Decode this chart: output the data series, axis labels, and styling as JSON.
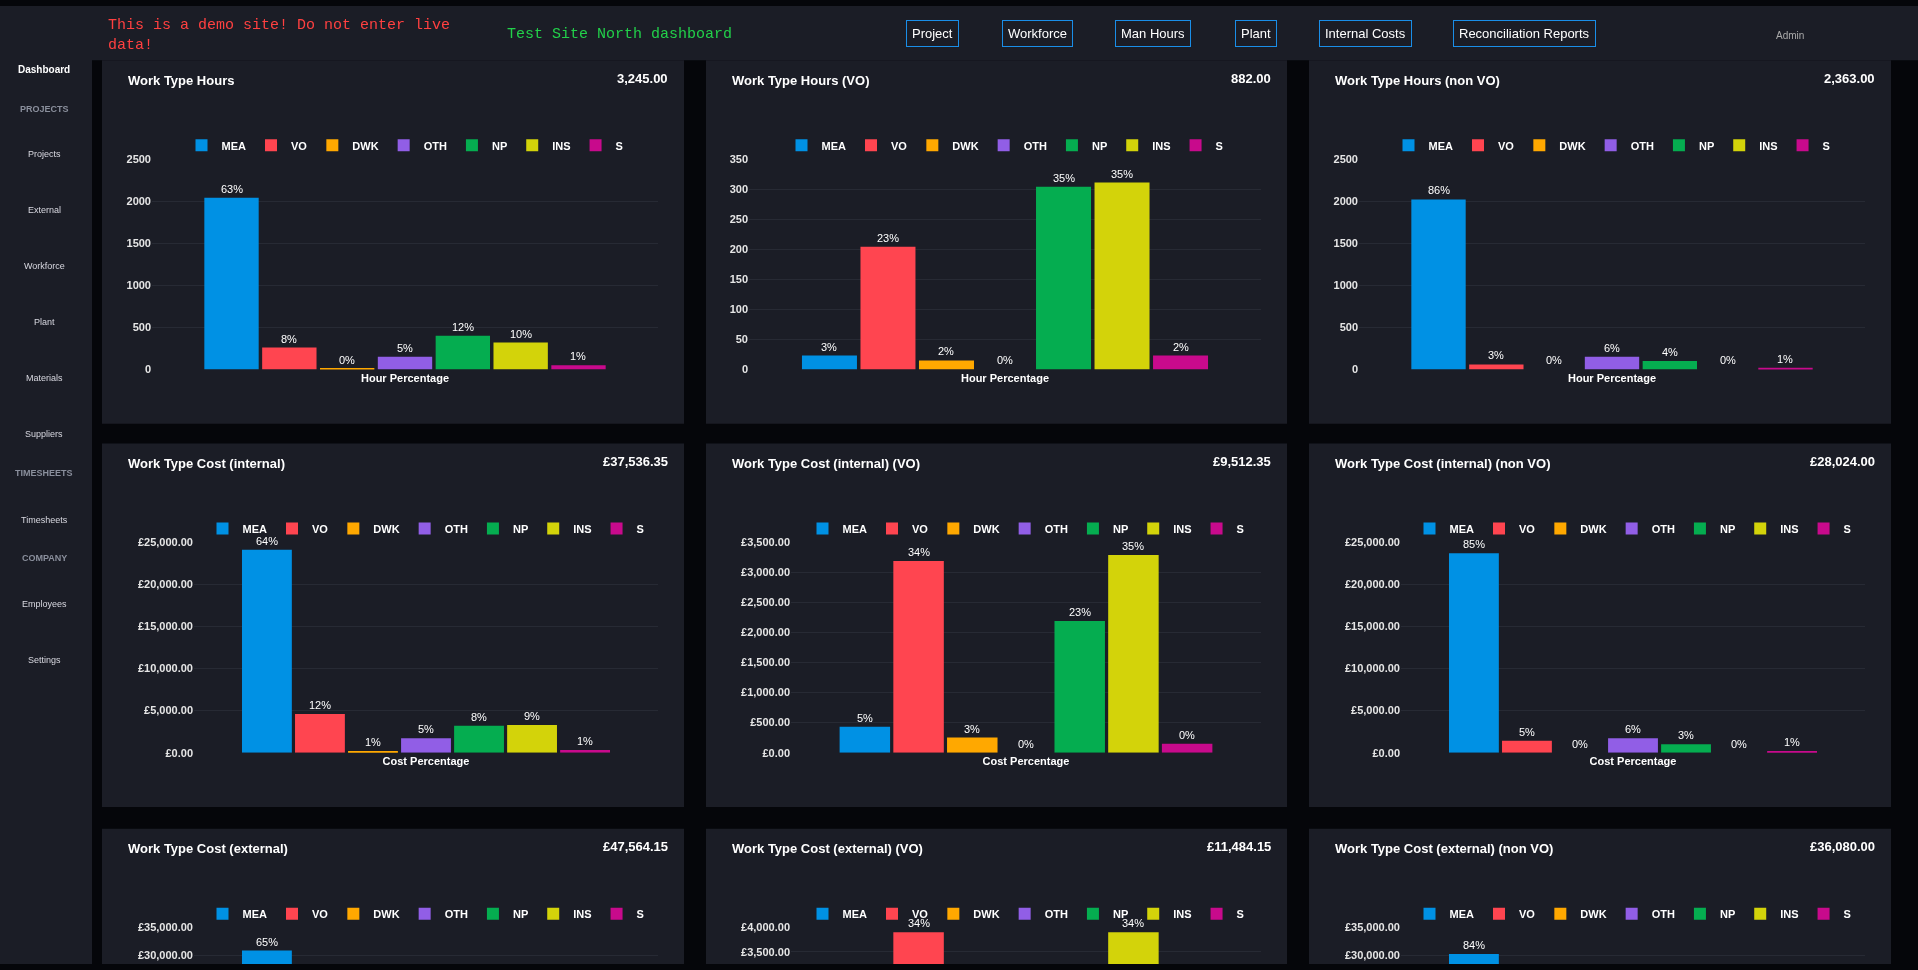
{
  "chart_data": [
    {
      "type": "other",
      "annotations": [
        "This is a demo site! Do not enter live data!",
        "Test Site North dashboard",
        "Project",
        "Workforce",
        "Man Hours",
        "Plant",
        "Internal Costs",
        "Reconciliation Reports",
        "Admin",
        "Dashboard",
        "PROJECTS",
        "Projects",
        "External",
        "Workforce",
        "Plant",
        "Materials",
        "Suppliers",
        "TIMESHEETS",
        "Timesheets",
        "COMPANY",
        "Employees",
        "Settings"
      ]
    },
    {
      "type": "bar",
      "title": "Work Type Hours",
      "subtitle": "3,245.00",
      "xlabel": "Hour Percentage",
      "categories": [
        null
      ],
      "ylim": [
        0,
        2500
      ],
      "yticks": [
        0,
        500,
        1000,
        1500,
        2000,
        2500
      ],
      "grid": "y",
      "legend": "top",
      "annotations": [
        {
          "text": "63%",
          "y": 2040
        },
        {
          "text": "8%",
          "y": 260
        },
        {
          "text": "0%",
          "y": 10
        },
        {
          "text": "5%",
          "y": 150
        },
        {
          "text": "12%",
          "y": 400
        },
        {
          "text": "10%",
          "y": 320
        },
        {
          "text": "1%",
          "y": 50
        }
      ],
      "series": [
        {
          "name": "MEA",
          "color": "#0091e4",
          "values": [
            2040
          ]
        },
        {
          "name": "VO",
          "color": "#ff4550",
          "values": [
            260
          ]
        },
        {
          "name": "DWK",
          "color": "#ffa800",
          "values": [
            10
          ]
        },
        {
          "name": "OTH",
          "color": "#915ee6",
          "values": [
            150
          ]
        },
        {
          "name": "NP",
          "color": "#05ad50",
          "values": [
            400
          ]
        },
        {
          "name": "INS",
          "color": "#d3d30a",
          "values": [
            320
          ]
        },
        {
          "name": "S",
          "color": "#c80a8c",
          "values": [
            50
          ]
        }
      ]
    },
    {
      "type": "bar",
      "title": "Work Type Hours (VO)",
      "subtitle": "882.00",
      "xlabel": "Hour Percentage",
      "categories": [
        null
      ],
      "ylim": [
        0,
        350
      ],
      "yticks": [
        0,
        50,
        100,
        150,
        200,
        250,
        300,
        350
      ],
      "grid": "y",
      "legend": "top",
      "annotations": [
        {
          "text": "3%",
          "y": 23
        },
        {
          "text": "23%",
          "y": 204
        },
        {
          "text": "2%",
          "y": 15
        },
        {
          "text": "0%",
          "y": 0
        },
        {
          "text": "35%",
          "y": 304
        },
        {
          "text": "35%",
          "y": 311
        },
        {
          "text": "2%",
          "y": 23
        }
      ],
      "series": [
        {
          "name": "MEA",
          "color": "#0091e4",
          "values": [
            23
          ]
        },
        {
          "name": "VO",
          "color": "#ff4550",
          "values": [
            204
          ]
        },
        {
          "name": "DWK",
          "color": "#ffa800",
          "values": [
            15
          ]
        },
        {
          "name": "OTH",
          "color": "#915ee6",
          "values": [
            0
          ]
        },
        {
          "name": "NP",
          "color": "#05ad50",
          "values": [
            304
          ]
        },
        {
          "name": "INS",
          "color": "#d3d30a",
          "values": [
            311
          ]
        },
        {
          "name": "S",
          "color": "#c80a8c",
          "values": [
            23
          ]
        }
      ]
    },
    {
      "type": "bar",
      "title": "Work Type Hours (non VO)",
      "subtitle": "2,363.00",
      "xlabel": "Hour Percentage",
      "categories": [
        null
      ],
      "ylim": [
        0,
        2500
      ],
      "yticks": [
        0,
        500,
        1000,
        1500,
        2000,
        2500
      ],
      "grid": "y",
      "legend": "top",
      "annotations": [
        {
          "text": "86%",
          "y": 2020
        },
        {
          "text": "3%",
          "y": 60
        },
        "0%",
        {
          "text": "6%",
          "y": 150
        },
        {
          "text": "4%",
          "y": 100
        },
        "0%",
        {
          "text": "1%",
          "y": 20
        }
      ],
      "series": [
        {
          "name": "MEA",
          "color": "#0091e4",
          "values": [
            2020
          ]
        },
        {
          "name": "VO",
          "color": "#ff4550",
          "values": [
            60
          ]
        },
        {
          "name": "DWK",
          "color": "#ffa800",
          "values": [
            0
          ]
        },
        {
          "name": "OTH",
          "color": "#915ee6",
          "values": [
            150
          ]
        },
        {
          "name": "NP",
          "color": "#05ad50",
          "values": [
            100
          ]
        },
        {
          "name": "INS",
          "color": "#d3d30a",
          "values": [
            0
          ]
        },
        {
          "name": "S",
          "color": "#c80a8c",
          "values": [
            20
          ]
        }
      ]
    },
    {
      "type": "bar",
      "title": "Work Type Cost (internal)",
      "subtitle": "£37,536.35",
      "xlabel": "Cost Percentage",
      "categories": [
        null
      ],
      "ylim": [
        0,
        25000
      ],
      "yticks": [
        {
          "value": 0,
          "label": "£0.00"
        },
        {
          "value": 5000,
          "label": "£5,000.00"
        },
        {
          "value": 10000,
          "label": "£10,000.00"
        },
        {
          "value": 15000,
          "label": "£15,000.00"
        },
        {
          "value": 20000,
          "label": "£20,000.00"
        },
        {
          "value": 25000,
          "label": "£25,000.00"
        }
      ],
      "grid": "y",
      "legend": "top",
      "annotations": [
        {
          "text": "64%",
          "y": 24100
        },
        {
          "text": "12%",
          "y": 4600
        },
        {
          "text": "1%",
          "y": 200
        },
        {
          "text": "5%",
          "y": 1700
        },
        {
          "text": "8%",
          "y": 3200
        },
        {
          "text": "9%",
          "y": 3300
        },
        {
          "text": "1%",
          "y": 300
        }
      ],
      "series": [
        {
          "name": "MEA",
          "color": "#0091e4",
          "values": [
            24100
          ]
        },
        {
          "name": "VO",
          "color": "#ff4550",
          "values": [
            4600
          ]
        },
        {
          "name": "DWK",
          "color": "#ffa800",
          "values": [
            200
          ]
        },
        {
          "name": "OTH",
          "color": "#915ee6",
          "values": [
            1700
          ]
        },
        {
          "name": "NP",
          "color": "#05ad50",
          "values": [
            3200
          ]
        },
        {
          "name": "INS",
          "color": "#d3d30a",
          "values": [
            3300
          ]
        },
        {
          "name": "S",
          "color": "#c80a8c",
          "values": [
            300
          ]
        }
      ]
    },
    {
      "type": "bar",
      "title": "Work Type Cost (internal) (VO)",
      "subtitle": "£9,512.35",
      "xlabel": "Cost Percentage",
      "categories": [
        null
      ],
      "ylim": [
        0,
        3500
      ],
      "yticks": [
        {
          "value": 0,
          "label": "£0.00"
        },
        {
          "value": 500,
          "label": "£500.00"
        },
        {
          "value": 1000,
          "label": "£1,000.00"
        },
        {
          "value": 1500,
          "label": "£1,500.00"
        },
        {
          "value": 2000,
          "label": "£2,000.00"
        },
        {
          "value": 2500,
          "label": "£2,500.00"
        },
        {
          "value": 3000,
          "label": "£3,000.00"
        },
        {
          "value": 3500,
          "label": "£3,500.00"
        }
      ],
      "grid": "y",
      "legend": "top",
      "annotations": [
        {
          "text": "5%",
          "y": 430
        },
        {
          "text": "34%",
          "y": 3190
        },
        {
          "text": "3%",
          "y": 250
        },
        {
          "text": "0%",
          "y": 0
        },
        {
          "text": "23%",
          "y": 2190
        },
        {
          "text": "35%",
          "y": 3290
        },
        {
          "text": "0%",
          "y": 150
        }
      ],
      "series": [
        {
          "name": "MEA",
          "color": "#0091e4",
          "values": [
            430
          ]
        },
        {
          "name": "VO",
          "color": "#ff4550",
          "values": [
            3190
          ]
        },
        {
          "name": "DWK",
          "color": "#ffa800",
          "values": [
            250
          ]
        },
        {
          "name": "OTH",
          "color": "#915ee6",
          "values": [
            0
          ]
        },
        {
          "name": "NP",
          "color": "#05ad50",
          "values": [
            2190
          ]
        },
        {
          "name": "INS",
          "color": "#d3d30a",
          "values": [
            3290
          ]
        },
        {
          "name": "S",
          "color": "#c80a8c",
          "values": [
            150
          ]
        }
      ]
    },
    {
      "type": "bar",
      "title": "Work Type Cost (internal) (non VO)",
      "subtitle": "£28,024.00",
      "xlabel": "Cost Percentage",
      "categories": [
        null
      ],
      "ylim": [
        0,
        25000
      ],
      "yticks": [
        {
          "value": 0,
          "label": "£0.00"
        },
        {
          "value": 5000,
          "label": "£5,000.00"
        },
        {
          "value": 10000,
          "label": "£10,000.00"
        },
        {
          "value": 15000,
          "label": "£15,000.00"
        },
        {
          "value": 20000,
          "label": "£20,000.00"
        },
        {
          "value": 25000,
          "label": "£25,000.00"
        }
      ],
      "grid": "y",
      "legend": "top",
      "annotations": [
        {
          "text": "85%",
          "y": 23700
        },
        {
          "text": "5%",
          "y": 1400
        },
        "0%",
        {
          "text": "6%",
          "y": 1700
        },
        {
          "text": "3%",
          "y": 1000
        },
        "0%",
        {
          "text": "1%",
          "y": 200
        }
      ],
      "series": [
        {
          "name": "MEA",
          "color": "#0091e4",
          "values": [
            23700
          ]
        },
        {
          "name": "VO",
          "color": "#ff4550",
          "values": [
            1400
          ]
        },
        {
          "name": "DWK",
          "color": "#ffa800",
          "values": [
            0
          ]
        },
        {
          "name": "OTH",
          "color": "#915ee6",
          "values": [
            1700
          ]
        },
        {
          "name": "NP",
          "color": "#05ad50",
          "values": [
            1000
          ]
        },
        {
          "name": "INS",
          "color": "#d3d30a",
          "values": [
            0
          ]
        },
        {
          "name": "S",
          "color": "#c80a8c",
          "values": [
            200
          ]
        }
      ]
    },
    {
      "type": "bar",
      "title": "Work Type Cost (external)",
      "subtitle": "£47,564.15",
      "categories": [
        null
      ],
      "ylim": [
        28500,
        35000
      ],
      "yticks": [
        {
          "value": 30000,
          "label": "£30,000.00"
        },
        {
          "value": 35000,
          "label": "£35,000.00"
        }
      ],
      "grid": "y",
      "legend": "top",
      "annotations": [
        {
          "text": "65%",
          "y": 30900
        }
      ],
      "series": [
        {
          "name": "MEA",
          "color": "#0091e4",
          "values": [
            30900
          ]
        },
        {
          "name": "VO",
          "color": "#ff4550",
          "values": [
            null
          ]
        },
        {
          "name": "DWK",
          "color": "#ffa800",
          "values": [
            null
          ]
        },
        {
          "name": "OTH",
          "color": "#915ee6",
          "values": [
            null
          ]
        },
        {
          "name": "NP",
          "color": "#05ad50",
          "values": [
            null
          ]
        },
        {
          "name": "INS",
          "color": "#d3d30a",
          "values": [
            null
          ]
        },
        {
          "name": "S",
          "color": "#c80a8c",
          "values": [
            null
          ]
        }
      ]
    },
    {
      "type": "bar",
      "title": "Work Type Cost (external) (VO)",
      "subtitle": "£11,484.15",
      "categories": [
        null
      ],
      "ylim": [
        3250,
        4000
      ],
      "yticks": [
        {
          "value": 3500,
          "label": "£3,500.00"
        },
        {
          "value": 4000,
          "label": "£4,000.00"
        }
      ],
      "grid": "y",
      "legend": "top",
      "annotations": [
        {
          "text": "34%",
          "y": 3900
        },
        {
          "text": "34%",
          "y": 3900
        }
      ],
      "series": [
        {
          "name": "MEA",
          "color": "#0091e4",
          "values": [
            null
          ]
        },
        {
          "name": "VO",
          "color": "#ff4550",
          "values": [
            3900
          ]
        },
        {
          "name": "DWK",
          "color": "#ffa800",
          "values": [
            null
          ]
        },
        {
          "name": "OTH",
          "color": "#915ee6",
          "values": [
            null
          ]
        },
        {
          "name": "NP",
          "color": "#05ad50",
          "values": [
            null
          ]
        },
        {
          "name": "INS",
          "color": "#d3d30a",
          "values": [
            3900
          ]
        },
        {
          "name": "S",
          "color": "#c80a8c",
          "values": [
            null
          ]
        }
      ]
    },
    {
      "type": "bar",
      "title": "Work Type Cost (external) (non VO)",
      "subtitle": "£36,080.00",
      "categories": [
        null
      ],
      "ylim": [
        28500,
        35000
      ],
      "yticks": [
        {
          "value": 30000,
          "label": "£30,000.00"
        },
        {
          "value": 35000,
          "label": "£35,000.00"
        }
      ],
      "grid": "y",
      "legend": "top",
      "annotations": [
        {
          "text": "84%",
          "y": 30300
        }
      ],
      "series": [
        {
          "name": "MEA",
          "color": "#0091e4",
          "values": [
            30300
          ]
        },
        {
          "name": "VO",
          "color": "#ff4550",
          "values": [
            null
          ]
        },
        {
          "name": "DWK",
          "color": "#ffa800",
          "values": [
            null
          ]
        },
        {
          "name": "OTH",
          "color": "#915ee6",
          "values": [
            null
          ]
        },
        {
          "name": "NP",
          "color": "#05ad50",
          "values": [
            null
          ]
        },
        {
          "name": "INS",
          "color": "#d3d30a",
          "values": [
            null
          ]
        },
        {
          "name": "S",
          "color": "#c80a8c",
          "values": [
            null
          ]
        }
      ]
    }
  ]
}
